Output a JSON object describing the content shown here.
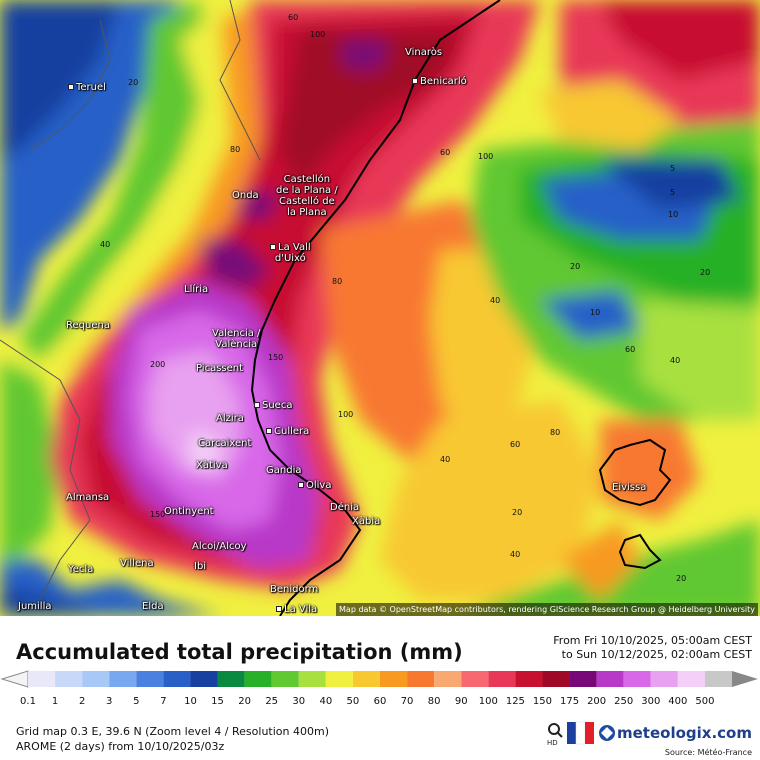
{
  "header": {
    "title": "Accumulated total precipitation (mm)",
    "period_from": "From Fri 10/10/2025, 05:00am CEST",
    "period_to": "to Sun 10/12/2025, 02:00am CEST"
  },
  "map": {
    "credit": "Map data © OpenStreetMap contributors, rendering GIScience Research Group @ Heidelberg University",
    "cities": [
      {
        "name": "Teruel"
      },
      {
        "name": "Vinaròs"
      },
      {
        "name": "Benicarló"
      },
      {
        "name": "Castellón\nde la Plana /\nCastelló de\nla Plana"
      },
      {
        "name": "Onda"
      },
      {
        "name": "La Vall\nd'Uixó"
      },
      {
        "name": "Llíria"
      },
      {
        "name": "Requena"
      },
      {
        "name": "Valencia /\nValència"
      },
      {
        "name": "Picassent"
      },
      {
        "name": "Sueca"
      },
      {
        "name": "Alzira"
      },
      {
        "name": "Cullera"
      },
      {
        "name": "Carcaixent"
      },
      {
        "name": "Xàtiva"
      },
      {
        "name": "Gandia"
      },
      {
        "name": "Oliva"
      },
      {
        "name": "Almansa"
      },
      {
        "name": "Ontinyent"
      },
      {
        "name": "Dénia"
      },
      {
        "name": "Xàbia"
      },
      {
        "name": "Alcoi/Alcoy"
      },
      {
        "name": "Yecla"
      },
      {
        "name": "Villena"
      },
      {
        "name": "Ibi"
      },
      {
        "name": "Jumilla"
      },
      {
        "name": "Elda"
      },
      {
        "name": "Benidorm"
      },
      {
        "name": "La Vila"
      },
      {
        "name": "Eivissa"
      }
    ],
    "contour_labels": [
      "100",
      "60",
      "80",
      "40",
      "20",
      "150",
      "200",
      "5",
      "10",
      "100",
      "60",
      "40",
      "20",
      "80",
      "150",
      "100",
      "40",
      "60",
      "80",
      "20",
      "40",
      "5",
      "10",
      "20",
      "60",
      "40",
      "20"
    ]
  },
  "legend": {
    "values": [
      "0.1",
      "1",
      "2",
      "3",
      "5",
      "7",
      "10",
      "15",
      "20",
      "25",
      "30",
      "40",
      "50",
      "60",
      "70",
      "80",
      "90",
      "100",
      "125",
      "150",
      "175",
      "200",
      "250",
      "300",
      "400",
      "500"
    ],
    "colors": [
      "#e8e8f8",
      "#c8d8f8",
      "#a8c8f8",
      "#78a8f0",
      "#4a80e0",
      "#2860c8",
      "#1840a0",
      "#0a8a40",
      "#28b028",
      "#60c830",
      "#a8e040",
      "#f0f040",
      "#f8c830",
      "#f89a20",
      "#f87830",
      "#f8a870",
      "#f86870",
      "#e83858",
      "#c81030",
      "#a00828",
      "#780878",
      "#b838c8",
      "#d868e8",
      "#e8a0f0",
      "#f4d0f8",
      "#c8c8c8"
    ]
  },
  "info": {
    "line1": "Grid map 0.3 E, 39.6 N (Zoom level 4 / Resolution 400m)",
    "line2": "AROME (2 days) from 10/10/2025/03z",
    "hd_label": "HD",
    "brand": "meteologix.com",
    "source": "Source: Météo-France"
  }
}
